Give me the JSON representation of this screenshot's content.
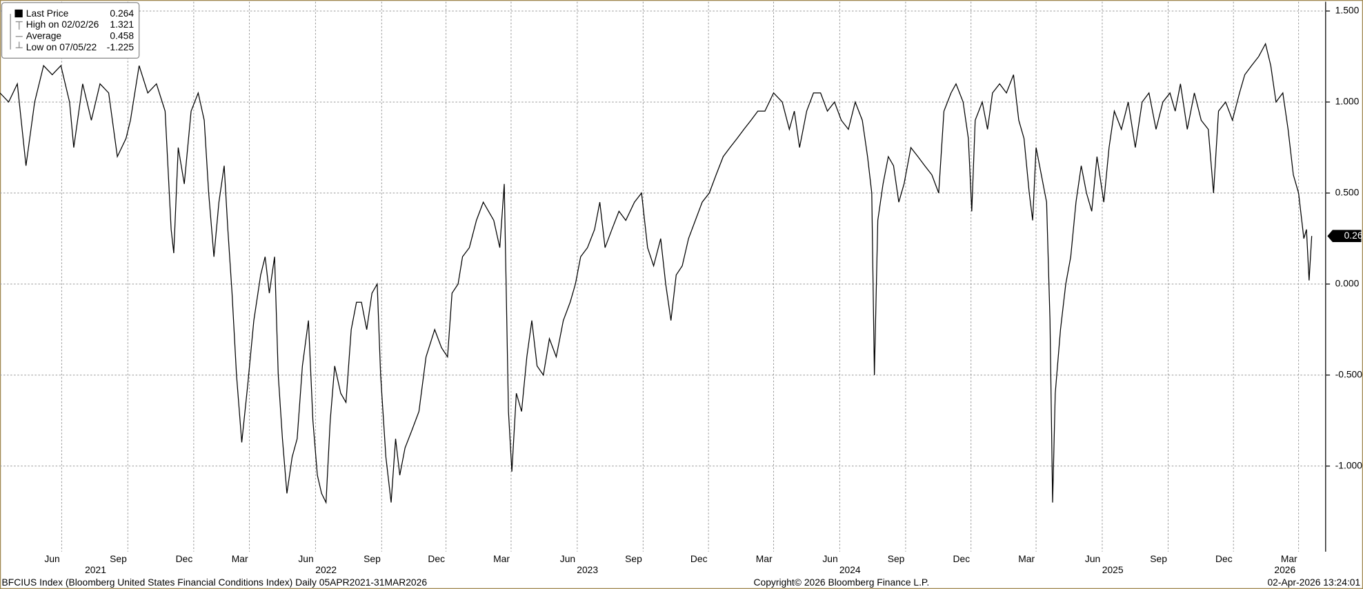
{
  "chart_data": {
    "type": "line",
    "color": "#000000",
    "grid": true,
    "legend": {
      "last": {
        "label": "Last Price",
        "value": 0.264
      },
      "stats": [
        {
          "label": "High on 02/02/26",
          "value": 1.321
        },
        {
          "label": "Average",
          "value": 0.458
        },
        {
          "label": "Low on 07/05/22",
          "value": -1.225
        }
      ]
    },
    "footer": {
      "left": "BFCIUS Index (Bloomberg United States Financial Conditions Index) Daily 05APR2021-31MAR2026",
      "center": "Copyright© 2026 Bloomberg Finance L.P.",
      "right": "02-Apr-2026 13:24:01"
    },
    "xlim": [
      2021.182,
      2026.232
    ],
    "xticks": [
      {
        "value": 2021.417,
        "label": "Jun"
      },
      {
        "value": 2021.669,
        "label": "Sep"
      },
      {
        "value": 2021.92,
        "label": "Dec"
      },
      {
        "value": 2022.132,
        "label": "Mar"
      },
      {
        "value": 2022.384,
        "label": "Jun"
      },
      {
        "value": 2022.636,
        "label": "Sep"
      },
      {
        "value": 2022.881,
        "label": "Dec"
      },
      {
        "value": 2023.129,
        "label": "Mar"
      },
      {
        "value": 2023.381,
        "label": "Jun"
      },
      {
        "value": 2023.632,
        "label": "Sep"
      },
      {
        "value": 2023.881,
        "label": "Dec"
      },
      {
        "value": 2024.129,
        "label": "Mar"
      },
      {
        "value": 2024.381,
        "label": "Jun"
      },
      {
        "value": 2024.632,
        "label": "Sep"
      },
      {
        "value": 2024.881,
        "label": "Dec"
      },
      {
        "value": 2025.129,
        "label": "Mar"
      },
      {
        "value": 2025.381,
        "label": "Jun"
      },
      {
        "value": 2025.632,
        "label": "Sep"
      },
      {
        "value": 2025.881,
        "label": "Dec"
      },
      {
        "value": 2026.129,
        "label": "Mar"
      }
    ],
    "year_labels": [
      {
        "value": 2021.546,
        "label": "2021"
      },
      {
        "value": 2022.424,
        "label": "2022"
      },
      {
        "value": 2023.42,
        "label": "2023"
      },
      {
        "value": 2024.42,
        "label": "2024"
      },
      {
        "value": 2025.421,
        "label": "2025"
      },
      {
        "value": 2026.077,
        "label": "2026"
      }
    ],
    "ylim": [
      -1.47,
      1.551
    ],
    "yticks": [
      {
        "value": 1.5,
        "label": "1.500"
      },
      {
        "value": 1,
        "label": "1.000"
      },
      {
        "value": 0.5,
        "label": "0.500"
      },
      {
        "value": 0,
        "label": "0.000"
      },
      {
        "value": -0.5,
        "label": "-0.500"
      },
      {
        "value": -1,
        "label": "-1.000"
      }
    ],
    "x": [
      2021.182,
      2021.215,
      2021.248,
      2021.281,
      2021.314,
      2021.348,
      2021.381,
      2021.414,
      2021.447,
      2021.463,
      2021.497,
      2021.53,
      2021.563,
      2021.596,
      2021.629,
      2021.662,
      2021.679,
      2021.712,
      2021.745,
      2021.778,
      2021.811,
      2021.834,
      2021.844,
      2021.861,
      2021.884,
      2021.91,
      2021.937,
      2021.96,
      2021.977,
      2021.997,
      2022.016,
      2022.036,
      2022.05,
      2022.066,
      2022.083,
      2022.103,
      2022.126,
      2022.149,
      2022.175,
      2022.192,
      2022.208,
      2022.228,
      2022.242,
      2022.258,
      2022.275,
      2022.295,
      2022.314,
      2022.334,
      2022.357,
      2022.374,
      2022.391,
      2022.407,
      2022.424,
      2022.44,
      2022.457,
      2022.48,
      2022.5,
      2022.52,
      2022.54,
      2022.559,
      2022.579,
      2022.599,
      2022.619,
      2022.632,
      2022.652,
      2022.672,
      2022.689,
      2022.705,
      2022.725,
      2022.752,
      2022.778,
      2022.805,
      2022.838,
      2022.864,
      2022.887,
      2022.904,
      2022.927,
      2022.944,
      2022.97,
      2022.997,
      2023.023,
      2023.043,
      2023.063,
      2023.086,
      2023.103,
      2023.119,
      2023.132,
      2023.149,
      2023.169,
      2023.189,
      2023.208,
      2023.228,
      2023.252,
      2023.275,
      2023.301,
      2023.328,
      2023.354,
      2023.374,
      2023.394,
      2023.42,
      2023.447,
      2023.467,
      2023.487,
      2023.513,
      2023.54,
      2023.566,
      2023.599,
      2023.626,
      2023.649,
      2023.672,
      2023.699,
      2023.718,
      2023.738,
      2023.758,
      2023.781,
      2023.805,
      2023.831,
      2023.857,
      2023.884,
      2023.91,
      2023.937,
      2023.963,
      2023.99,
      2024.016,
      2024.043,
      2024.069,
      2024.096,
      2024.129,
      2024.162,
      2024.189,
      2024.208,
      2024.228,
      2024.255,
      2024.281,
      2024.308,
      2024.334,
      2024.361,
      2024.387,
      2024.414,
      2024.44,
      2024.467,
      2024.487,
      2024.503,
      2024.513,
      2024.526,
      2024.546,
      2024.566,
      2024.586,
      2024.606,
      2024.626,
      2024.652,
      2024.679,
      2024.705,
      2024.732,
      2024.758,
      2024.778,
      2024.805,
      2024.824,
      2024.851,
      2024.871,
      2024.884,
      2024.897,
      2024.924,
      2024.944,
      2024.963,
      2024.99,
      2025.016,
      2025.043,
      2025.063,
      2025.083,
      2025.103,
      2025.116,
      2025.129,
      2025.149,
      2025.169,
      2025.182,
      2025.192,
      2025.202,
      2025.222,
      2025.242,
      2025.261,
      2025.281,
      2025.301,
      2025.321,
      2025.341,
      2025.361,
      2025.387,
      2025.407,
      2025.427,
      2025.454,
      2025.48,
      2025.507,
      2025.533,
      2025.559,
      2025.586,
      2025.612,
      2025.639,
      2025.659,
      2025.679,
      2025.705,
      2025.732,
      2025.758,
      2025.785,
      2025.805,
      2025.824,
      2025.851,
      2025.877,
      2025.904,
      2025.924,
      2025.95,
      2025.977,
      2026.003,
      2026.023,
      2026.043,
      2026.069,
      2026.089,
      2026.109,
      2026.129,
      2026.149,
      2026.159,
      2026.169,
      2026.179
    ],
    "values": [
      1.05,
      1.0,
      1.1,
      0.65,
      1.0,
      1.2,
      1.15,
      1.2,
      1.0,
      0.75,
      1.1,
      0.9,
      1.1,
      1.05,
      0.7,
      0.8,
      0.9,
      1.2,
      1.05,
      1.1,
      0.95,
      0.3,
      0.17,
      0.75,
      0.55,
      0.95,
      1.05,
      0.9,
      0.5,
      0.15,
      0.45,
      0.65,
      0.3,
      -0.05,
      -0.5,
      -0.87,
      -0.55,
      -0.2,
      0.05,
      0.15,
      -0.05,
      0.15,
      -0.5,
      -0.85,
      -1.15,
      -0.95,
      -0.85,
      -0.45,
      -0.2,
      -0.75,
      -1.05,
      -1.15,
      -1.2,
      -0.75,
      -0.45,
      -0.6,
      -0.65,
      -0.25,
      -0.1,
      -0.1,
      -0.25,
      -0.05,
      0.0,
      -0.5,
      -0.95,
      -1.2,
      -0.85,
      -1.05,
      -0.9,
      -0.8,
      -0.7,
      -0.4,
      -0.25,
      -0.35,
      -0.4,
      -0.05,
      0.0,
      0.15,
      0.2,
      0.35,
      0.45,
      0.4,
      0.35,
      0.2,
      0.55,
      -0.7,
      -1.03,
      -0.6,
      -0.7,
      -0.4,
      -0.2,
      -0.45,
      -0.5,
      -0.3,
      -0.4,
      -0.2,
      -0.1,
      0.0,
      0.15,
      0.2,
      0.3,
      0.45,
      0.2,
      0.3,
      0.4,
      0.35,
      0.45,
      0.5,
      0.2,
      0.1,
      0.25,
      0.0,
      -0.2,
      0.05,
      0.1,
      0.25,
      0.35,
      0.45,
      0.5,
      0.6,
      0.7,
      0.75,
      0.8,
      0.85,
      0.9,
      0.95,
      0.95,
      1.05,
      1.0,
      0.85,
      0.95,
      0.75,
      0.95,
      1.05,
      1.05,
      0.95,
      1.0,
      0.9,
      0.85,
      1.0,
      0.9,
      0.7,
      0.5,
      -0.5,
      0.35,
      0.55,
      0.7,
      0.65,
      0.45,
      0.55,
      0.75,
      0.7,
      0.65,
      0.6,
      0.5,
      0.95,
      1.05,
      1.1,
      1.0,
      0.8,
      0.4,
      0.9,
      1.0,
      0.85,
      1.05,
      1.1,
      1.05,
      1.15,
      0.9,
      0.8,
      0.5,
      0.35,
      0.75,
      0.6,
      0.45,
      -0.2,
      -1.2,
      -0.6,
      -0.25,
      0.0,
      0.15,
      0.45,
      0.65,
      0.5,
      0.4,
      0.7,
      0.45,
      0.75,
      0.95,
      0.85,
      1.0,
      0.75,
      1.0,
      1.05,
      0.85,
      1.0,
      1.05,
      0.95,
      1.1,
      0.85,
      1.05,
      0.9,
      0.85,
      0.5,
      0.95,
      1.0,
      0.9,
      1.05,
      1.15,
      1.2,
      1.25,
      1.32,
      1.2,
      1.0,
      1.05,
      0.85,
      0.6,
      0.5,
      0.25,
      0.3,
      0.02,
      0.264
    ]
  }
}
